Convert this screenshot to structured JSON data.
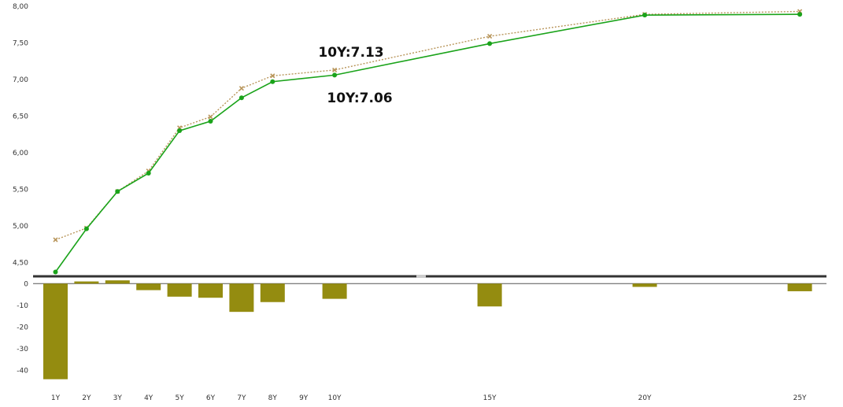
{
  "chart_data": [
    {
      "type": "line",
      "categories": [
        "1Y",
        "2Y",
        "3Y",
        "4Y",
        "5Y",
        "6Y",
        "7Y",
        "8Y",
        "9Y",
        "10Y",
        "15Y",
        "20Y",
        "25Y"
      ],
      "x": [
        1,
        2,
        3,
        4,
        5,
        6,
        7,
        8,
        10,
        15,
        20,
        25
      ],
      "series": [
        {
          "values": [
            4.81,
            4.97,
            5.47,
            5.75,
            6.34,
            6.49,
            6.88,
            7.05,
            7.13,
            7.59,
            7.89,
            7.93
          ],
          "color": "#b8955a",
          "style": "dotted",
          "marker": "x"
        },
        {
          "values": [
            4.37,
            4.96,
            5.47,
            5.72,
            6.3,
            6.43,
            6.75,
            6.97,
            7.06,
            7.49,
            7.88,
            7.89
          ],
          "color": "#1aa31a",
          "style": "solid",
          "marker": "circle"
        }
      ],
      "ylim": [
        4.3,
        8.0
      ],
      "yticks": [
        "4,50",
        "5,00",
        "5,50",
        "6,00",
        "6,50",
        "7,00",
        "7,50",
        "8,00"
      ],
      "ytick_values": [
        4.5,
        5.0,
        5.5,
        6.0,
        6.5,
        7.0,
        7.5,
        8.0
      ],
      "annotations": [
        "10Y:7.13",
        "10Y:7.06"
      ],
      "grid": false
    },
    {
      "type": "bar",
      "x": [
        1,
        2,
        3,
        4,
        5,
        6,
        7,
        8,
        10,
        15,
        20,
        25
      ],
      "values": [
        -44,
        1,
        1.5,
        -3,
        -6,
        -6.5,
        -13,
        -8.5,
        -7,
        -10.5,
        -1.5,
        -3.5
      ],
      "color": "#948c10",
      "ylim": [
        -47,
        3
      ],
      "yticks": [
        "0",
        "-10",
        "-20",
        "-30",
        "-40"
      ],
      "ytick_values": [
        0,
        -10,
        -20,
        -30,
        -40
      ],
      "xticks": [
        "1Y",
        "2Y",
        "3Y",
        "4Y",
        "5Y",
        "6Y",
        "7Y",
        "8Y",
        "9Y",
        "10Y",
        "15Y",
        "20Y",
        "25Y"
      ],
      "xtick_values": [
        1,
        2,
        3,
        4,
        5,
        6,
        7,
        8,
        9,
        10,
        15,
        20,
        25
      ]
    }
  ]
}
